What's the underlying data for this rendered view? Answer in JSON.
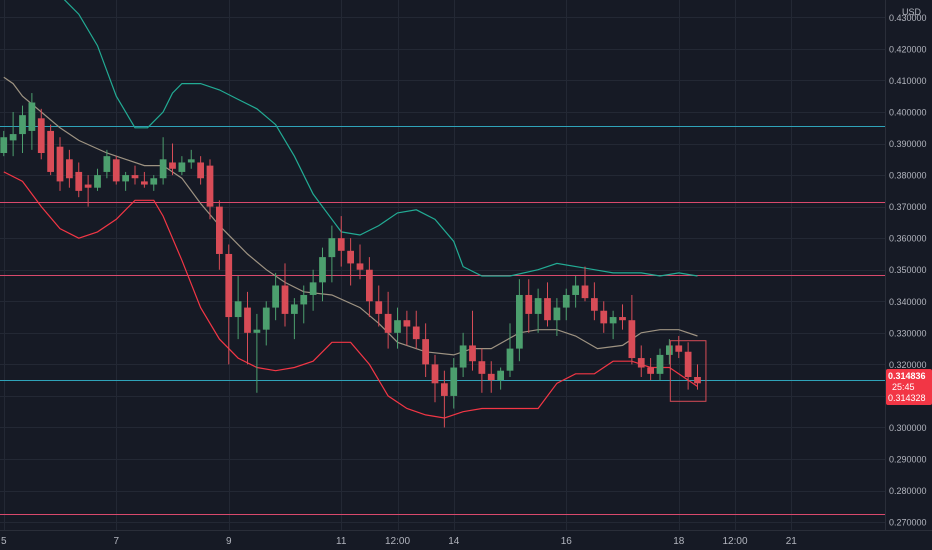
{
  "chart_data": {
    "type": "candlestick",
    "currency": "USD",
    "price_labels": [
      "0.430000",
      "0.420000",
      "0.410000",
      "0.400000",
      "0.390000",
      "0.380000",
      "0.370000",
      "0.360000",
      "0.350000",
      "0.340000",
      "0.330000",
      "0.320000",
      "0.310000",
      "0.300000",
      "0.290000",
      "0.280000",
      "0.270000"
    ],
    "price_values": [
      0.43,
      0.42,
      0.41,
      0.4,
      0.39,
      0.38,
      0.37,
      0.36,
      0.35,
      0.34,
      0.33,
      0.32,
      0.31,
      0.3,
      0.29,
      0.28,
      0.27
    ],
    "time_labels": [
      "5",
      "7",
      "9",
      "11",
      "12:00",
      "14",
      "16",
      "18",
      "12:00",
      "21"
    ],
    "time_positions": [
      0,
      36,
      72,
      108,
      126,
      144,
      180,
      216,
      234,
      252
    ],
    "ylim": [
      0.2675,
      0.4355
    ],
    "xlim": [
      -1.2,
      282
    ],
    "horizontal_lines": [
      {
        "value": 0.3955,
        "color": "#2fa3b9"
      },
      {
        "value": 0.3716,
        "color": "#d9496c"
      },
      {
        "value": 0.3483,
        "color": "#d9496c"
      },
      {
        "value": 0.315,
        "color": "#2fa3b9"
      },
      {
        "value": 0.2725,
        "color": "#d9496c"
      }
    ],
    "colors": {
      "up": "#4c9f6e",
      "down": "#d84c57",
      "background": "#161a25",
      "grid": "#232834",
      "text": "#b2b5be"
    },
    "candles_step": 3,
    "candles_t0": -3,
    "candles": [
      [
        0.389,
        0.393,
        0.382,
        0.387
      ],
      [
        0.387,
        0.394,
        0.386,
        0.392
      ],
      [
        0.391,
        0.4,
        0.386,
        0.393
      ],
      [
        0.393,
        0.402,
        0.387,
        0.399
      ],
      [
        0.394,
        0.406,
        0.388,
        0.403
      ],
      [
        0.398,
        0.401,
        0.385,
        0.387
      ],
      [
        0.394,
        0.396,
        0.38,
        0.381
      ],
      [
        0.389,
        0.392,
        0.375,
        0.378
      ],
      [
        0.385,
        0.388,
        0.376,
        0.379
      ],
      [
        0.381,
        0.384,
        0.373,
        0.375
      ],
      [
        0.377,
        0.38,
        0.37,
        0.376
      ],
      [
        0.376,
        0.382,
        0.375,
        0.38
      ],
      [
        0.381,
        0.388,
        0.379,
        0.386
      ],
      [
        0.385,
        0.386,
        0.377,
        0.378
      ],
      [
        0.378,
        0.381,
        0.375,
        0.38
      ],
      [
        0.38,
        0.383,
        0.377,
        0.379
      ],
      [
        0.378,
        0.381,
        0.376,
        0.377
      ],
      [
        0.377,
        0.38,
        0.375,
        0.379
      ],
      [
        0.379,
        0.392,
        0.377,
        0.385
      ],
      [
        0.384,
        0.39,
        0.38,
        0.382
      ],
      [
        0.381,
        0.386,
        0.38,
        0.384
      ],
      [
        0.384,
        0.388,
        0.382,
        0.385
      ],
      [
        0.384,
        0.386,
        0.377,
        0.379
      ],
      [
        0.383,
        0.385,
        0.366,
        0.37
      ],
      [
        0.37,
        0.372,
        0.35,
        0.355
      ],
      [
        0.355,
        0.358,
        0.32,
        0.335
      ],
      [
        0.335,
        0.348,
        0.328,
        0.34
      ],
      [
        0.338,
        0.343,
        0.32,
        0.33
      ],
      [
        0.33,
        0.336,
        0.311,
        0.331
      ],
      [
        0.331,
        0.34,
        0.326,
        0.338
      ],
      [
        0.338,
        0.349,
        0.334,
        0.345
      ],
      [
        0.345,
        0.352,
        0.332,
        0.336
      ],
      [
        0.336,
        0.341,
        0.328,
        0.339
      ],
      [
        0.339,
        0.345,
        0.333,
        0.342
      ],
      [
        0.342,
        0.35,
        0.337,
        0.346
      ],
      [
        0.346,
        0.357,
        0.34,
        0.354
      ],
      [
        0.354,
        0.364,
        0.346,
        0.36
      ],
      [
        0.36,
        0.367,
        0.351,
        0.356
      ],
      [
        0.356,
        0.36,
        0.345,
        0.352
      ],
      [
        0.352,
        0.358,
        0.347,
        0.35
      ],
      [
        0.35,
        0.354,
        0.335,
        0.34
      ],
      [
        0.34,
        0.345,
        0.332,
        0.336
      ],
      [
        0.336,
        0.343,
        0.325,
        0.33
      ],
      [
        0.33,
        0.338,
        0.325,
        0.334
      ],
      [
        0.334,
        0.337,
        0.326,
        0.332
      ],
      [
        0.332,
        0.337,
        0.325,
        0.328
      ],
      [
        0.328,
        0.333,
        0.316,
        0.32
      ],
      [
        0.32,
        0.323,
        0.308,
        0.314
      ],
      [
        0.314,
        0.318,
        0.3,
        0.31
      ],
      [
        0.31,
        0.322,
        0.306,
        0.319
      ],
      [
        0.319,
        0.33,
        0.316,
        0.326
      ],
      [
        0.326,
        0.337,
        0.318,
        0.321
      ],
      [
        0.321,
        0.325,
        0.311,
        0.317
      ],
      [
        0.317,
        0.321,
        0.311,
        0.315
      ],
      [
        0.315,
        0.319,
        0.312,
        0.318
      ],
      [
        0.318,
        0.333,
        0.316,
        0.325
      ],
      [
        0.325,
        0.347,
        0.321,
        0.342
      ],
      [
        0.342,
        0.347,
        0.33,
        0.336
      ],
      [
        0.336,
        0.344,
        0.33,
        0.341
      ],
      [
        0.341,
        0.346,
        0.332,
        0.334
      ],
      [
        0.334,
        0.341,
        0.329,
        0.338
      ],
      [
        0.338,
        0.344,
        0.334,
        0.342
      ],
      [
        0.342,
        0.348,
        0.338,
        0.345
      ],
      [
        0.345,
        0.351,
        0.34,
        0.341
      ],
      [
        0.341,
        0.346,
        0.334,
        0.337
      ],
      [
        0.337,
        0.34,
        0.33,
        0.333
      ],
      [
        0.333,
        0.337,
        0.328,
        0.335
      ],
      [
        0.335,
        0.339,
        0.331,
        0.334
      ],
      [
        0.334,
        0.342,
        0.32,
        0.322
      ],
      [
        0.322,
        0.326,
        0.316,
        0.319
      ],
      [
        0.319,
        0.322,
        0.315,
        0.317
      ],
      [
        0.317,
        0.325,
        0.315,
        0.323
      ],
      [
        0.323,
        0.328,
        0.32,
        0.326
      ],
      [
        0.326,
        0.329,
        0.322,
        0.324
      ],
      [
        0.324,
        0.327,
        0.312,
        0.316
      ],
      [
        0.316,
        0.32,
        0.312,
        0.314
      ]
    ],
    "bb_middle": [
      [
        0,
        0.411
      ],
      [
        3,
        0.409
      ],
      [
        6,
        0.405
      ],
      [
        12,
        0.4
      ],
      [
        18,
        0.395
      ],
      [
        24,
        0.391
      ],
      [
        33,
        0.387
      ],
      [
        45,
        0.383
      ],
      [
        51,
        0.383
      ],
      [
        57,
        0.379
      ],
      [
        63,
        0.371
      ],
      [
        69,
        0.364
      ],
      [
        78,
        0.355
      ],
      [
        84,
        0.35
      ],
      [
        90,
        0.346
      ],
      [
        96,
        0.343
      ],
      [
        105,
        0.342
      ],
      [
        114,
        0.338
      ],
      [
        120,
        0.333
      ],
      [
        126,
        0.327
      ],
      [
        135,
        0.324
      ],
      [
        144,
        0.323
      ],
      [
        150,
        0.325
      ],
      [
        156,
        0.325
      ],
      [
        165,
        0.33
      ],
      [
        171,
        0.331
      ],
      [
        177,
        0.331
      ],
      [
        183,
        0.329
      ],
      [
        190,
        0.325
      ],
      [
        198,
        0.326
      ],
      [
        204,
        0.33
      ],
      [
        210,
        0.331
      ],
      [
        216,
        0.331
      ],
      [
        222,
        0.329
      ]
    ],
    "bb_upper": [
      [
        18,
        0.437
      ],
      [
        24,
        0.431
      ],
      [
        30,
        0.421
      ],
      [
        36,
        0.405
      ],
      [
        42,
        0.395
      ],
      [
        46,
        0.395
      ],
      [
        51,
        0.4
      ],
      [
        54,
        0.406
      ],
      [
        57,
        0.409
      ],
      [
        63,
        0.409
      ],
      [
        69,
        0.407
      ],
      [
        75,
        0.404
      ],
      [
        81,
        0.401
      ],
      [
        87,
        0.396
      ],
      [
        93,
        0.386
      ],
      [
        99,
        0.374
      ],
      [
        105,
        0.366
      ],
      [
        108,
        0.362
      ],
      [
        114,
        0.361
      ],
      [
        120,
        0.364
      ],
      [
        126,
        0.368
      ],
      [
        132,
        0.369
      ],
      [
        138,
        0.366
      ],
      [
        144,
        0.359
      ],
      [
        147,
        0.351
      ],
      [
        153,
        0.348
      ],
      [
        162,
        0.348
      ],
      [
        171,
        0.35
      ],
      [
        177,
        0.352
      ],
      [
        189,
        0.35
      ],
      [
        195,
        0.349
      ],
      [
        204,
        0.349
      ],
      [
        210,
        0.348
      ],
      [
        216,
        0.349
      ],
      [
        222,
        0.348
      ]
    ],
    "bb_lower": [
      [
        0,
        0.381
      ],
      [
        6,
        0.378
      ],
      [
        12,
        0.37
      ],
      [
        18,
        0.363
      ],
      [
        24,
        0.36
      ],
      [
        30,
        0.362
      ],
      [
        36,
        0.366
      ],
      [
        42,
        0.372
      ],
      [
        48,
        0.372
      ],
      [
        51,
        0.367
      ],
      [
        57,
        0.353
      ],
      [
        63,
        0.338
      ],
      [
        69,
        0.328
      ],
      [
        75,
        0.322
      ],
      [
        81,
        0.319
      ],
      [
        87,
        0.318
      ],
      [
        93,
        0.319
      ],
      [
        99,
        0.321
      ],
      [
        105,
        0.327
      ],
      [
        111,
        0.327
      ],
      [
        117,
        0.32
      ],
      [
        123,
        0.31
      ],
      [
        129,
        0.306
      ],
      [
        135,
        0.304
      ],
      [
        141,
        0.303
      ],
      [
        147,
        0.305
      ],
      [
        153,
        0.306
      ],
      [
        159,
        0.306
      ],
      [
        165,
        0.306
      ],
      [
        171,
        0.306
      ],
      [
        177,
        0.314
      ],
      [
        183,
        0.317
      ],
      [
        189,
        0.317
      ],
      [
        195,
        0.321
      ],
      [
        201,
        0.321
      ],
      [
        207,
        0.319
      ],
      [
        213,
        0.319
      ],
      [
        219,
        0.315
      ],
      [
        222,
        0.313
      ]
    ],
    "highlight_box": {
      "t0": 213.3,
      "t1": 224.7,
      "p0": 0.3083,
      "p1": 0.3275,
      "color": "#d84c57"
    },
    "last_price": {
      "price": "0.314836",
      "countdown": "25:45",
      "close": "0.314328",
      "value": 0.3148,
      "color": "#f23645"
    }
  }
}
